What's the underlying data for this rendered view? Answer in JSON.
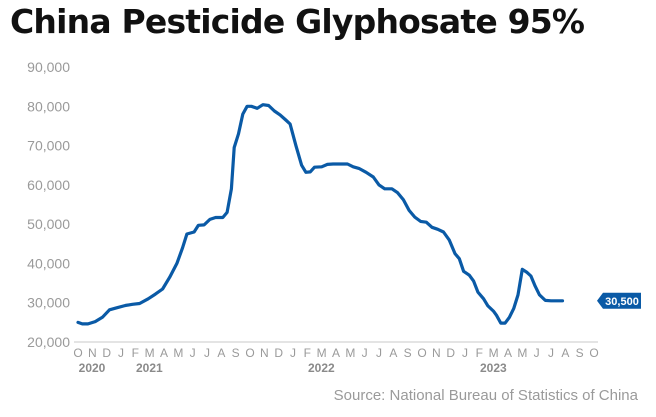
{
  "chart_data": {
    "type": "line",
    "title": "China Pesticide Glyphosate 95%",
    "source": "Source: National Bureau of Statistics of China",
    "ylim": [
      20000,
      90000
    ],
    "y_ticks": [
      "20,000",
      "30,000",
      "40,000",
      "50,000",
      "60,000",
      "70,000",
      "80,000",
      "90,000"
    ],
    "y_tick_values": [
      20000,
      30000,
      40000,
      50000,
      60000,
      70000,
      80000,
      90000
    ],
    "x_month_labels": [
      "O",
      "N",
      "D",
      "J",
      "F",
      "M",
      "A",
      "M",
      "J",
      "J",
      "A",
      "S",
      "O",
      "N",
      "D",
      "J",
      "F",
      "M",
      "A",
      "M",
      "J",
      "J",
      "A",
      "S",
      "O",
      "N",
      "D",
      "J",
      "F",
      "M",
      "A",
      "M",
      "J",
      "J",
      "A",
      "S",
      "O"
    ],
    "x_year_labels": [
      {
        "label": "2020",
        "index": 0
      },
      {
        "label": "2021",
        "index": 4
      },
      {
        "label": "2022",
        "index": 16
      },
      {
        "label": "2023",
        "index": 28
      }
    ],
    "last_value_label": "30,500",
    "line_color": "#0a5aa6",
    "grid": false,
    "series": [
      {
        "points": [
          [
            0.0,
            25000
          ],
          [
            0.3,
            24600
          ],
          [
            0.7,
            24600
          ],
          [
            1.2,
            25200
          ],
          [
            1.7,
            26300
          ],
          [
            2.2,
            28200
          ],
          [
            2.7,
            28700
          ],
          [
            3.3,
            29300
          ],
          [
            3.8,
            29600
          ],
          [
            4.3,
            29800
          ],
          [
            4.9,
            31000
          ],
          [
            5.4,
            32200
          ],
          [
            5.9,
            33500
          ],
          [
            6.4,
            36500
          ],
          [
            6.9,
            40000
          ],
          [
            7.3,
            44000
          ],
          [
            7.6,
            47500
          ],
          [
            8.1,
            48000
          ],
          [
            8.4,
            49700
          ],
          [
            8.8,
            49800
          ],
          [
            9.2,
            51200
          ],
          [
            9.6,
            51700
          ],
          [
            10.1,
            51700
          ],
          [
            10.4,
            53000
          ],
          [
            10.7,
            59000
          ],
          [
            10.9,
            69500
          ],
          [
            11.2,
            73000
          ],
          [
            11.5,
            78000
          ],
          [
            11.8,
            80000
          ],
          [
            12.1,
            80000
          ],
          [
            12.5,
            79500
          ],
          [
            12.9,
            80400
          ],
          [
            13.3,
            80200
          ],
          [
            13.7,
            78800
          ],
          [
            14.1,
            77800
          ],
          [
            14.5,
            76500
          ],
          [
            14.8,
            75500
          ],
          [
            15.2,
            70000
          ],
          [
            15.6,
            65000
          ],
          [
            15.9,
            63200
          ],
          [
            16.2,
            63300
          ],
          [
            16.5,
            64500
          ],
          [
            17.0,
            64600
          ],
          [
            17.4,
            65200
          ],
          [
            17.8,
            65300
          ],
          [
            18.3,
            65300
          ],
          [
            18.8,
            65300
          ],
          [
            19.2,
            64600
          ],
          [
            19.6,
            64200
          ],
          [
            20.1,
            63200
          ],
          [
            20.6,
            62000
          ],
          [
            21.0,
            60000
          ],
          [
            21.4,
            59000
          ],
          [
            21.9,
            59000
          ],
          [
            22.3,
            58000
          ],
          [
            22.7,
            56200
          ],
          [
            23.1,
            53500
          ],
          [
            23.5,
            51800
          ],
          [
            23.9,
            50700
          ],
          [
            24.3,
            50500
          ],
          [
            24.7,
            49200
          ],
          [
            25.1,
            48700
          ],
          [
            25.5,
            48000
          ],
          [
            25.9,
            46000
          ],
          [
            26.3,
            42500
          ],
          [
            26.6,
            41200
          ],
          [
            26.9,
            38000
          ],
          [
            27.3,
            37000
          ],
          [
            27.6,
            35500
          ],
          [
            27.9,
            32700
          ],
          [
            28.3,
            31000
          ],
          [
            28.6,
            29200
          ],
          [
            29.0,
            27800
          ],
          [
            29.2,
            26800
          ],
          [
            29.5,
            24800
          ],
          [
            29.8,
            24800
          ],
          [
            30.1,
            26300
          ],
          [
            30.4,
            28500
          ],
          [
            30.7,
            32000
          ],
          [
            31.0,
            38500
          ],
          [
            31.3,
            37800
          ],
          [
            31.6,
            36800
          ],
          [
            31.9,
            34200
          ],
          [
            32.2,
            32000
          ],
          [
            32.6,
            30600
          ],
          [
            33.0,
            30500
          ],
          [
            33.5,
            30500
          ],
          [
            33.8,
            30500
          ]
        ]
      }
    ]
  }
}
